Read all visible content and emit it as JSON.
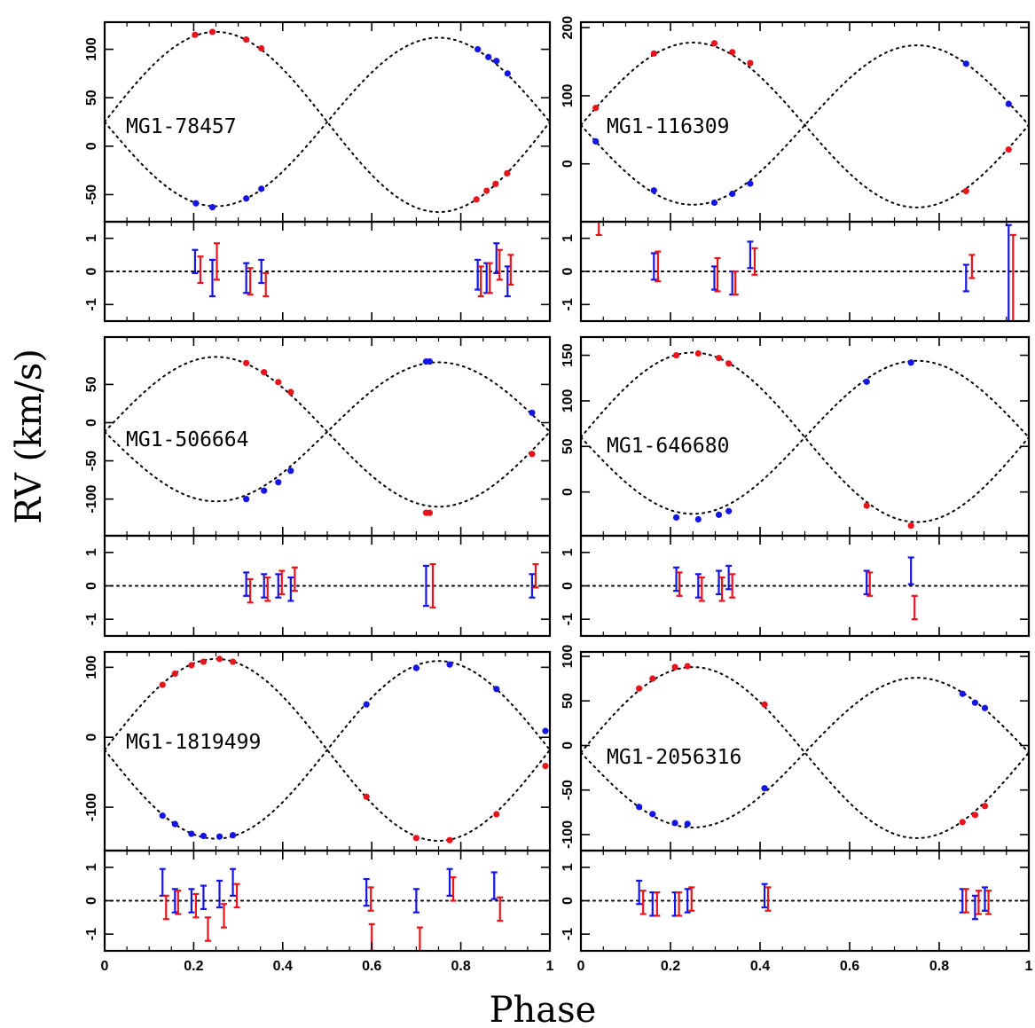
{
  "xlabel": "Phase",
  "ylabel": "RV (km/s)",
  "colors": {
    "primary": "#e8141c",
    "secondary": "#1414e6"
  },
  "x_ticks": [
    "0",
    "0.2",
    "0.4",
    "0.6",
    "0.8",
    "1"
  ],
  "chart_data": [
    {
      "type": "scatter",
      "name": "MG1-78457",
      "model": {
        "gamma": 25,
        "K1": 93,
        "K2": 87,
        "phi0": 0.25
      },
      "ylim": [
        -78,
        128
      ],
      "yticks": [
        -50,
        0,
        50,
        100
      ],
      "xlim": [
        0,
        1
      ],
      "points_primary": [
        [
          0.203,
          115
        ],
        [
          0.242,
          118
        ],
        [
          0.318,
          110
        ],
        [
          0.352,
          101
        ],
        [
          0.835,
          -55
        ],
        [
          0.858,
          -46
        ],
        [
          0.878,
          -39
        ],
        [
          0.904,
          -28
        ]
      ],
      "points_secondary": [
        [
          0.205,
          -59
        ],
        [
          0.242,
          -63
        ],
        [
          0.318,
          -54
        ],
        [
          0.352,
          -44
        ],
        [
          0.838,
          100
        ],
        [
          0.862,
          92
        ],
        [
          0.88,
          88
        ],
        [
          0.905,
          75
        ]
      ],
      "resid_ylim": [
        -1.5,
        1.5
      ],
      "resid_yticks": [
        -1,
        0,
        1
      ],
      "residuals_primary": [
        [
          0.215,
          0.05,
          0.4
        ],
        [
          0.252,
          0.3,
          0.55
        ],
        [
          0.327,
          -0.3,
          0.4
        ],
        [
          0.362,
          -0.4,
          0.35
        ],
        [
          0.845,
          -0.3,
          0.45
        ],
        [
          0.865,
          -0.2,
          0.45
        ],
        [
          0.887,
          0.2,
          0.45
        ],
        [
          0.912,
          0.05,
          0.45
        ]
      ],
      "residuals_secondary": [
        [
          0.203,
          0.3,
          0.35
        ],
        [
          0.242,
          -0.2,
          0.55
        ],
        [
          0.318,
          -0.2,
          0.45
        ],
        [
          0.352,
          0.0,
          0.35
        ],
        [
          0.838,
          -0.1,
          0.45
        ],
        [
          0.858,
          -0.2,
          0.45
        ],
        [
          0.88,
          0.4,
          0.45
        ],
        [
          0.905,
          -0.3,
          0.45
        ]
      ]
    },
    {
      "type": "scatter",
      "name": "MG1-116309",
      "model": {
        "gamma": 57,
        "K1": 121,
        "K2": 117,
        "phi0": 0.25
      },
      "ylim": [
        -85,
        208
      ],
      "yticks": [
        0,
        100,
        200
      ],
      "xlim": [
        0,
        1
      ],
      "points_primary": [
        [
          0.033,
          82
        ],
        [
          0.163,
          162
        ],
        [
          0.298,
          177
        ],
        [
          0.338,
          164
        ],
        [
          0.378,
          148
        ],
        [
          0.86,
          -40
        ],
        [
          0.955,
          21
        ]
      ],
      "points_secondary": [
        [
          0.033,
          33
        ],
        [
          0.163,
          -39
        ],
        [
          0.298,
          -57
        ],
        [
          0.338,
          -44
        ],
        [
          0.378,
          -29
        ],
        [
          0.86,
          147
        ],
        [
          0.955,
          88
        ]
      ],
      "resid_ylim": [
        -1.5,
        1.5
      ],
      "resid_yticks": [
        -1,
        0,
        1
      ],
      "residuals_primary": [
        [
          0.04,
          1.5,
          0.4
        ],
        [
          0.172,
          0.15,
          0.45
        ],
        [
          0.305,
          -0.1,
          0.5
        ],
        [
          0.345,
          -0.35,
          0.35
        ],
        [
          0.388,
          0.3,
          0.4
        ],
        [
          0.873,
          0.15,
          0.35
        ],
        [
          0.965,
          -0.9,
          2.0
        ]
      ],
      "residuals_secondary": [
        [
          0.163,
          0.15,
          0.4
        ],
        [
          0.298,
          -0.2,
          0.35
        ],
        [
          0.338,
          -0.35,
          0.35
        ],
        [
          0.378,
          0.5,
          0.4
        ],
        [
          0.86,
          -0.2,
          0.4
        ],
        [
          0.955,
          -0.2,
          1.6
        ]
      ]
    },
    {
      "type": "scatter",
      "name": "MG1-506664",
      "model": {
        "gamma": -12,
        "K1": 98,
        "K2": 91,
        "phi0": 0.25
      },
      "ylim": [
        -148,
        112
      ],
      "yticks": [
        -100,
        -50,
        0,
        50
      ],
      "xlim": [
        0,
        1
      ],
      "points_primary": [
        [
          0.318,
          78
        ],
        [
          0.358,
          66
        ],
        [
          0.39,
          53
        ],
        [
          0.418,
          40
        ],
        [
          0.722,
          -118
        ],
        [
          0.73,
          -118
        ],
        [
          0.96,
          -41
        ]
      ],
      "points_secondary": [
        [
          0.318,
          -100
        ],
        [
          0.358,
          -89
        ],
        [
          0.39,
          -78
        ],
        [
          0.418,
          -63
        ],
        [
          0.722,
          80
        ],
        [
          0.73,
          80
        ],
        [
          0.96,
          13
        ]
      ],
      "resid_ylim": [
        -1.5,
        1.5
      ],
      "resid_yticks": [
        -1,
        0,
        1
      ],
      "residuals_primary": [
        [
          0.327,
          -0.15,
          0.35
        ],
        [
          0.366,
          -0.1,
          0.35
        ],
        [
          0.398,
          0.1,
          0.35
        ],
        [
          0.427,
          0.2,
          0.35
        ],
        [
          0.737,
          0.0,
          0.65
        ],
        [
          0.968,
          0.3,
          0.35
        ]
      ],
      "residuals_secondary": [
        [
          0.318,
          0.05,
          0.35
        ],
        [
          0.358,
          0.0,
          0.35
        ],
        [
          0.39,
          0.0,
          0.35
        ],
        [
          0.418,
          -0.1,
          0.35
        ],
        [
          0.722,
          0.0,
          0.6
        ],
        [
          0.96,
          0.0,
          0.35
        ]
      ]
    },
    {
      "type": "scatter",
      "name": "MG1-646680",
      "model": {
        "gamma": 60,
        "K1": 93,
        "K2": 84,
        "phi0": 0.25
      },
      "ylim": [
        -48,
        170
      ],
      "yticks": [
        0,
        50,
        100,
        150
      ],
      "xlim": [
        0,
        1
      ],
      "points_primary": [
        [
          0.213,
          150
        ],
        [
          0.262,
          152
        ],
        [
          0.308,
          147
        ],
        [
          0.33,
          141
        ],
        [
          0.638,
          -15
        ],
        [
          0.737,
          -37
        ]
      ],
      "points_secondary": [
        [
          0.213,
          -28
        ],
        [
          0.262,
          -30
        ],
        [
          0.308,
          -25
        ],
        [
          0.33,
          -21
        ],
        [
          0.638,
          121
        ],
        [
          0.737,
          142
        ]
      ],
      "resid_ylim": [
        -1.5,
        1.5
      ],
      "resid_yticks": [
        -1,
        0,
        1
      ],
      "residuals_primary": [
        [
          0.22,
          0.05,
          0.35
        ],
        [
          0.27,
          -0.1,
          0.35
        ],
        [
          0.315,
          -0.1,
          0.35
        ],
        [
          0.338,
          0.0,
          0.35
        ],
        [
          0.645,
          0.05,
          0.35
        ],
        [
          0.745,
          -0.65,
          0.35
        ]
      ],
      "residuals_secondary": [
        [
          0.213,
          0.2,
          0.35
        ],
        [
          0.262,
          0.0,
          0.35
        ],
        [
          0.308,
          0.1,
          0.35
        ],
        [
          0.33,
          0.25,
          0.35
        ],
        [
          0.638,
          0.1,
          0.35
        ],
        [
          0.737,
          0.45,
          0.4
        ]
      ]
    },
    {
      "type": "scatter",
      "name": "MG1-1819499",
      "model": {
        "gamma": -18,
        "K1": 130,
        "K2": 127,
        "phi0": 0.25
      },
      "ylim": [
        -162,
        122
      ],
      "yticks": [
        -100,
        0,
        100
      ],
      "xlim": [
        0,
        1
      ],
      "points_primary": [
        [
          0.13,
          75
        ],
        [
          0.158,
          91
        ],
        [
          0.195,
          103
        ],
        [
          0.222,
          108
        ],
        [
          0.258,
          112
        ],
        [
          0.288,
          108
        ],
        [
          0.588,
          -85
        ],
        [
          0.7,
          -144
        ],
        [
          0.775,
          -147
        ],
        [
          0.88,
          -110
        ],
        [
          0.99,
          -41
        ]
      ],
      "points_secondary": [
        [
          0.13,
          -112
        ],
        [
          0.158,
          -124
        ],
        [
          0.195,
          -138
        ],
        [
          0.222,
          -141
        ],
        [
          0.258,
          -142
        ],
        [
          0.288,
          -140
        ],
        [
          0.588,
          47
        ],
        [
          0.7,
          99
        ],
        [
          0.775,
          104
        ],
        [
          0.88,
          69
        ],
        [
          0.99,
          9
        ]
      ],
      "resid_ylim": [
        -1.5,
        1.5
      ],
      "resid_yticks": [
        -1,
        0,
        1
      ],
      "residuals_primary": [
        [
          0.138,
          -0.2,
          0.35
        ],
        [
          0.165,
          -0.05,
          0.35
        ],
        [
          0.205,
          -0.15,
          0.35
        ],
        [
          0.232,
          -0.85,
          0.35
        ],
        [
          0.268,
          -0.45,
          0.35
        ],
        [
          0.297,
          0.15,
          0.35
        ],
        [
          0.598,
          0.05,
          0.35
        ],
        [
          0.6,
          -1.1,
          0.4
        ],
        [
          0.708,
          -1.2,
          0.4
        ],
        [
          0.783,
          0.35,
          0.35
        ],
        [
          0.888,
          -0.25,
          0.35
        ]
      ],
      "residuals_secondary": [
        [
          0.13,
          0.55,
          0.4
        ],
        [
          0.158,
          0.0,
          0.35
        ],
        [
          0.195,
          0.0,
          0.35
        ],
        [
          0.222,
          0.1,
          0.35
        ],
        [
          0.258,
          0.2,
          0.4
        ],
        [
          0.288,
          0.55,
          0.4
        ],
        [
          0.588,
          0.25,
          0.4
        ],
        [
          0.7,
          0.0,
          0.35
        ],
        [
          0.775,
          0.55,
          0.4
        ],
        [
          0.875,
          0.45,
          0.4
        ]
      ]
    },
    {
      "type": "scatter",
      "name": "MG1-2056316",
      "model": {
        "gamma": -8,
        "K1": 96,
        "K2": 84,
        "phi0": 0.25
      },
      "ylim": [
        -118,
        105
      ],
      "yticks": [
        -100,
        -50,
        0,
        50,
        100
      ],
      "xlim": [
        0,
        1
      ],
      "points_primary": [
        [
          0.13,
          64
        ],
        [
          0.16,
          75
        ],
        [
          0.21,
          88
        ],
        [
          0.238,
          89
        ],
        [
          0.41,
          46
        ],
        [
          0.852,
          -86
        ],
        [
          0.88,
          -78
        ],
        [
          0.902,
          -68
        ]
      ],
      "points_secondary": [
        [
          0.13,
          -69
        ],
        [
          0.16,
          -77
        ],
        [
          0.21,
          -87
        ],
        [
          0.238,
          -88
        ],
        [
          0.41,
          -48
        ],
        [
          0.852,
          58
        ],
        [
          0.88,
          48
        ],
        [
          0.902,
          42
        ]
      ],
      "resid_ylim": [
        -1.5,
        1.5
      ],
      "resid_yticks": [
        -1,
        0,
        1
      ],
      "residuals_primary": [
        [
          0.139,
          -0.05,
          0.35
        ],
        [
          0.17,
          -0.1,
          0.35
        ],
        [
          0.219,
          -0.1,
          0.35
        ],
        [
          0.247,
          0.05,
          0.35
        ],
        [
          0.418,
          0.05,
          0.35
        ],
        [
          0.86,
          0.0,
          0.35
        ],
        [
          0.888,
          -0.05,
          0.35
        ],
        [
          0.91,
          -0.05,
          0.35
        ]
      ],
      "residuals_secondary": [
        [
          0.13,
          0.25,
          0.35
        ],
        [
          0.16,
          -0.1,
          0.35
        ],
        [
          0.21,
          -0.1,
          0.35
        ],
        [
          0.238,
          0.0,
          0.35
        ],
        [
          0.41,
          0.15,
          0.35
        ],
        [
          0.852,
          0.0,
          0.35
        ],
        [
          0.88,
          -0.2,
          0.35
        ],
        [
          0.902,
          0.05,
          0.35
        ]
      ]
    }
  ]
}
